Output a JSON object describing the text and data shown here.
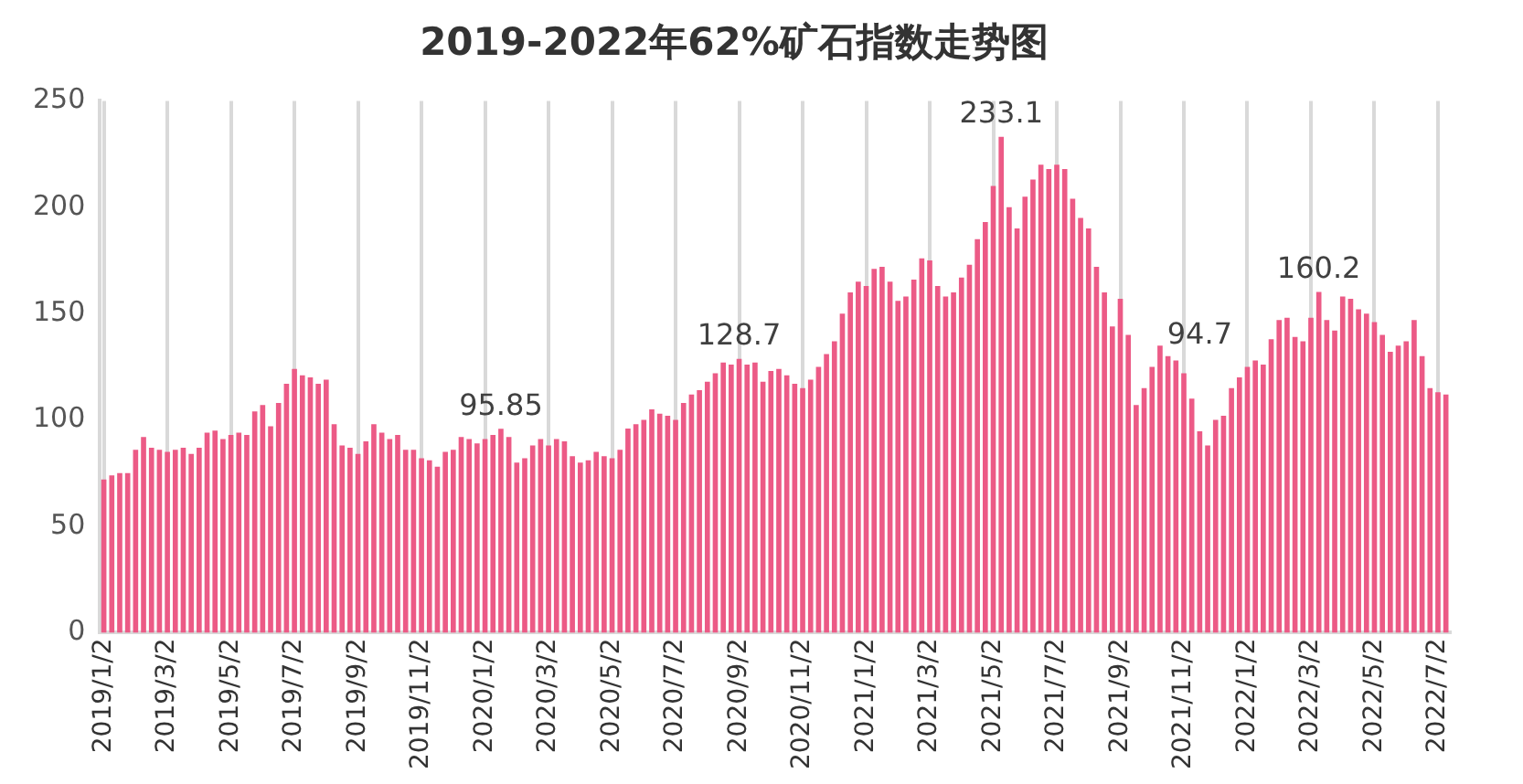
{
  "chart_data": {
    "type": "bar",
    "title": "2019-2022年62%矿石指数走势图",
    "categories": [
      "2019/1/2",
      null,
      null,
      null,
      null,
      null,
      null,
      null,
      "2019/3/2",
      null,
      null,
      null,
      null,
      null,
      null,
      null,
      "2019/5/2",
      null,
      null,
      null,
      null,
      null,
      null,
      null,
      "2019/7/2",
      null,
      null,
      null,
      null,
      null,
      null,
      null,
      "2019/9/2",
      null,
      null,
      null,
      null,
      null,
      null,
      null,
      "2019/11/2",
      null,
      null,
      null,
      null,
      null,
      null,
      null,
      "2020/1/2",
      null,
      null,
      null,
      null,
      null,
      null,
      null,
      "2020/3/2",
      null,
      null,
      null,
      null,
      null,
      null,
      null,
      "2020/5/2",
      null,
      null,
      null,
      null,
      null,
      null,
      null,
      "2020/7/2",
      null,
      null,
      null,
      null,
      null,
      null,
      null,
      "2020/9/2",
      null,
      null,
      null,
      null,
      null,
      null,
      null,
      "2020/11/2",
      null,
      null,
      null,
      null,
      null,
      null,
      null,
      "2021/1/2",
      null,
      null,
      null,
      null,
      null,
      null,
      null,
      "2021/3/2",
      null,
      null,
      null,
      null,
      null,
      null,
      null,
      "2021/5/2",
      null,
      null,
      null,
      null,
      null,
      null,
      null,
      "2021/7/2",
      null,
      null,
      null,
      null,
      null,
      null,
      null,
      "2021/9/2",
      null,
      null,
      null,
      null,
      null,
      null,
      null,
      "2021/11/2",
      null,
      null,
      null,
      null,
      null,
      null,
      null,
      "2022/1/2",
      null,
      null,
      null,
      null,
      null,
      null,
      null,
      "2022/3/2",
      null,
      null,
      null,
      null,
      null,
      null,
      null,
      "2022/5/2",
      null,
      null,
      null,
      null,
      null,
      null,
      null,
      "2022/7/2",
      null
    ],
    "series": [
      {
        "color": "#ec5a86",
        "values": [
          72,
          74,
          75,
          75,
          86,
          92,
          87,
          86,
          85,
          86,
          87,
          84,
          87,
          94,
          95,
          91,
          93,
          94,
          93,
          104,
          107,
          97,
          108,
          117,
          124,
          121,
          120,
          117,
          119,
          98,
          88,
          87,
          84,
          90,
          98,
          94,
          91,
          93,
          86,
          86,
          82,
          81,
          78,
          85,
          86,
          92,
          91,
          89,
          91,
          93,
          95.85,
          92,
          80,
          82,
          88,
          91,
          88,
          91,
          90,
          83,
          80,
          81,
          85,
          83,
          82,
          86,
          96,
          98,
          100,
          105,
          103,
          102,
          100,
          108,
          112,
          114,
          118,
          122,
          127,
          126,
          128.7,
          126,
          127,
          118,
          123,
          124,
          121,
          117,
          115,
          119,
          125,
          131,
          137,
          150,
          160,
          165,
          163,
          171,
          172,
          165,
          156,
          158,
          166,
          176,
          175,
          163,
          158,
          160,
          167,
          173,
          185,
          193,
          210,
          233.1,
          200,
          190,
          205,
          213,
          220,
          218,
          220,
          218,
          204,
          195,
          190,
          172,
          160,
          144,
          157,
          140,
          107,
          115,
          125,
          135,
          130,
          128,
          122,
          110,
          94.7,
          88,
          100,
          102,
          115,
          120,
          125,
          128,
          126,
          138,
          147,
          148,
          139,
          137,
          148,
          160.2,
          147,
          142,
          158,
          157,
          152,
          150,
          146,
          140,
          132,
          135,
          137,
          147,
          130,
          115,
          113,
          112
        ],
        "value_labels": [
          null,
          null,
          null,
          null,
          null,
          null,
          null,
          null,
          null,
          null,
          null,
          null,
          null,
          null,
          null,
          null,
          null,
          null,
          null,
          null,
          null,
          null,
          null,
          null,
          null,
          null,
          null,
          null,
          null,
          null,
          null,
          null,
          null,
          null,
          null,
          null,
          null,
          null,
          null,
          null,
          null,
          null,
          null,
          null,
          null,
          null,
          null,
          null,
          null,
          null,
          "95.85",
          null,
          null,
          null,
          null,
          null,
          null,
          null,
          null,
          null,
          null,
          null,
          null,
          null,
          null,
          null,
          null,
          null,
          null,
          null,
          null,
          null,
          null,
          null,
          null,
          null,
          null,
          null,
          null,
          null,
          "128.7",
          null,
          null,
          null,
          null,
          null,
          null,
          null,
          null,
          null,
          null,
          null,
          null,
          null,
          null,
          null,
          null,
          null,
          null,
          null,
          null,
          null,
          null,
          null,
          null,
          null,
          null,
          null,
          null,
          null,
          null,
          null,
          null,
          "233.1",
          null,
          null,
          null,
          null,
          null,
          null,
          null,
          null,
          null,
          null,
          null,
          null,
          null,
          null,
          null,
          null,
          null,
          null,
          null,
          null,
          null,
          null,
          null,
          null,
          "94.7",
          null,
          null,
          null,
          null,
          null,
          null,
          null,
          null,
          null,
          null,
          null,
          null,
          null,
          null,
          "160.2",
          null,
          null,
          null,
          null,
          null,
          null,
          null,
          null,
          null,
          null,
          null,
          null,
          null,
          null,
          null,
          null
        ]
      }
    ],
    "ylim": [
      0,
      250
    ],
    "yticks": [
      0,
      50,
      100,
      150,
      200,
      250
    ],
    "grid": "x",
    "legend": false
  }
}
